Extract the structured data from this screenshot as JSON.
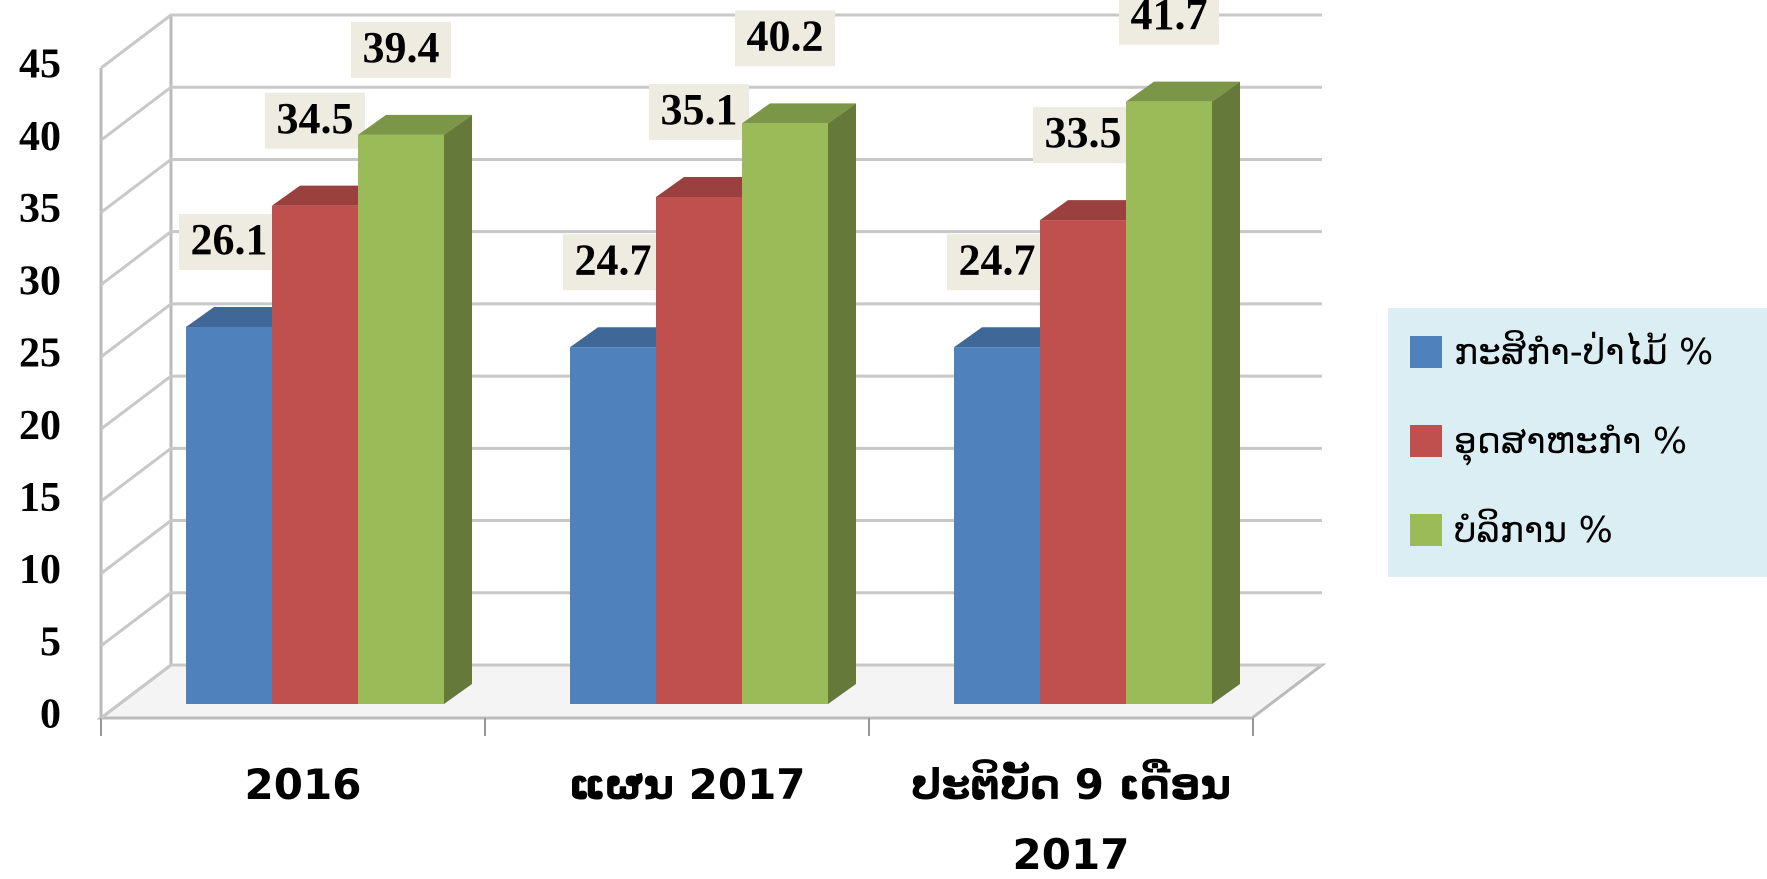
{
  "chart_data": {
    "type": "bar3d",
    "categories": [
      "2016",
      "ແຜນ 2017",
      "ປະຕິບັດ 9 ເດືອນ 2017"
    ],
    "series": [
      {
        "name": "ກະສິກຳ-ປ່າໄມ້ %",
        "color": "#4f81bd",
        "values": [
          26.1,
          24.7,
          24.7
        ]
      },
      {
        "name": "ອຸດສາຫະກຳ %",
        "color": "#c0504d",
        "values": [
          34.5,
          35.1,
          33.5
        ]
      },
      {
        "name": "ບໍລິການ %",
        "color": "#9bbb59",
        "values": [
          39.4,
          40.2,
          41.7
        ]
      }
    ],
    "ylim": [
      0,
      45
    ],
    "yticks": [
      0,
      5,
      10,
      15,
      20,
      25,
      30,
      35,
      40,
      45
    ],
    "grid": true,
    "legend": "right"
  }
}
